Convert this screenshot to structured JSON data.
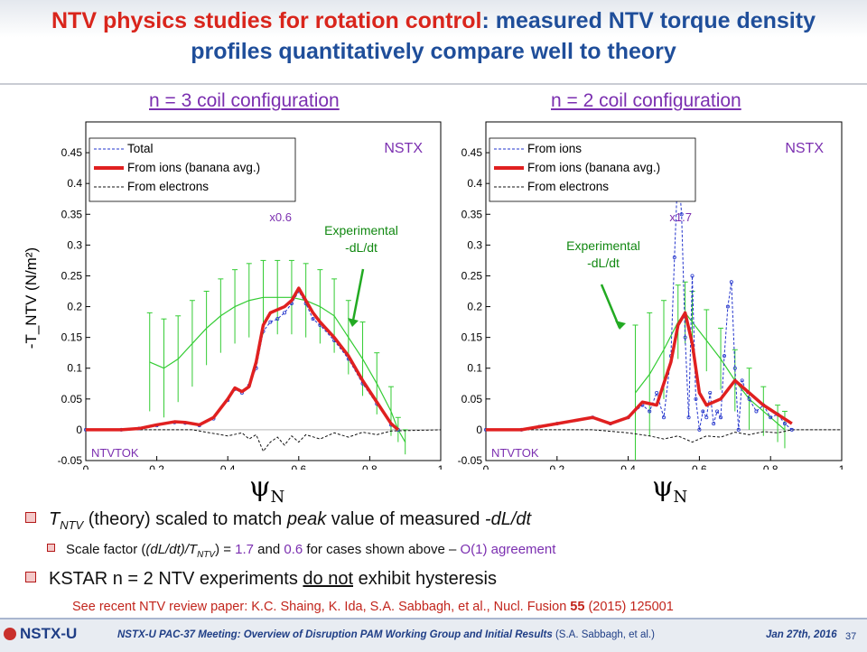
{
  "slide": {
    "title_red": "NTV physics studies for rotation control",
    "title_blue": ": measured NTV torque density profiles quantitatively compare well to theory",
    "left_config": "n = 3 coil configuration",
    "right_config": "n = 2 coil configuration",
    "bullet1_T": "T",
    "bullet1_sub": "NTV",
    "bullet1_rest": " (theory) scaled to match ",
    "bullet1_peak": "peak",
    "bullet1_rest2": " value of measured ",
    "bullet1_dldt": "-dL/dt",
    "bullet2_a": "Scale factor (",
    "bullet2_b": "(dL/dt)/T",
    "bullet2_sub": "NTV",
    "bullet2_c": ") = ",
    "bullet2_v1": "1.7",
    "bullet2_d": " and ",
    "bullet2_v2": "0.6",
    "bullet2_e": " for cases shown above – ",
    "bullet2_f": "O(1) agreement",
    "bullet3_a": "KSTAR n = 2 NTV experiments ",
    "bullet3_u": "do not",
    "bullet3_b": " exhibit hysteresis",
    "ref_a": "See recent NTV review paper: K.C. Shaing, K. Ida, S.A. Sabbagh, et al., Nucl. Fusion ",
    "ref_vol": "55",
    "ref_b": " (2015) 125001",
    "psi_label": "ψ",
    "psi_sub": "N"
  },
  "footer": {
    "logo": "NSTX-U",
    "meeting": "NSTX-U PAC-37 Meeting: Overview of Disruption PAM Working Group and Initial Results",
    "authors": "(S.A. Sabbagh, et al.)",
    "date": "Jan 27th, 2016",
    "page": "37"
  },
  "chart_data": [
    {
      "type": "line",
      "ylabel": "-T_NTV (N/m^2)",
      "xlim": [
        0,
        1
      ],
      "ylim": [
        -0.05,
        0.5
      ],
      "xticks": [
        "0",
        "0.2",
        "0.4",
        "0.6",
        "0.8",
        "1"
      ],
      "yticks": [
        "-0.05",
        "0",
        "0.05",
        "0.1",
        "0.15",
        "0.2",
        "0.25",
        "0.3",
        "0.35",
        "0.4",
        "0.45"
      ],
      "legend": [
        "Total",
        "From ions (banana avg.)",
        "From electrons"
      ],
      "scale_label": "x0.6",
      "machine_label": "NSTX",
      "code_label": "NTVTOK",
      "annotation": "Experimental\n-dL/dt",
      "colors": {
        "total": "#2233cc",
        "ions": "#e02020",
        "electrons": "#111111",
        "experimental": "#33cc33"
      },
      "experimental": {
        "x": [
          0.18,
          0.22,
          0.26,
          0.3,
          0.34,
          0.38,
          0.42,
          0.46,
          0.5,
          0.54,
          0.58,
          0.62,
          0.66,
          0.7,
          0.74,
          0.78,
          0.82,
          0.86,
          0.88,
          0.9
        ],
        "y": [
          0.11,
          0.1,
          0.115,
          0.14,
          0.165,
          0.185,
          0.2,
          0.21,
          0.215,
          0.215,
          0.215,
          0.21,
          0.2,
          0.185,
          0.15,
          0.115,
          0.075,
          0.03,
          0.0,
          -0.02
        ],
        "err": [
          0.08,
          0.08,
          0.07,
          0.07,
          0.06,
          0.06,
          0.06,
          0.06,
          0.06,
          0.06,
          0.06,
          0.06,
          0.06,
          0.06,
          0.06,
          0.06,
          0.05,
          0.04,
          0.02,
          0.02
        ]
      },
      "ions": {
        "x": [
          0,
          0.1,
          0.15,
          0.2,
          0.25,
          0.28,
          0.32,
          0.36,
          0.4,
          0.42,
          0.44,
          0.46,
          0.48,
          0.5,
          0.52,
          0.54,
          0.56,
          0.58,
          0.6,
          0.62,
          0.64,
          0.66,
          0.7,
          0.74,
          0.78,
          0.82,
          0.86,
          0.88
        ],
        "y": [
          0,
          0,
          0.002,
          0.008,
          0.013,
          0.012,
          0.008,
          0.02,
          0.05,
          0.068,
          0.062,
          0.07,
          0.11,
          0.17,
          0.19,
          0.195,
          0.2,
          0.21,
          0.23,
          0.21,
          0.19,
          0.175,
          0.15,
          0.12,
          0.08,
          0.045,
          0.01,
          0.0
        ]
      },
      "total": {
        "x": [
          0,
          0.1,
          0.15,
          0.2,
          0.25,
          0.28,
          0.32,
          0.36,
          0.4,
          0.42,
          0.44,
          0.46,
          0.48,
          0.5,
          0.52,
          0.54,
          0.56,
          0.58,
          0.6,
          0.62,
          0.64,
          0.66,
          0.7,
          0.74,
          0.78,
          0.82,
          0.86,
          0.88
        ],
        "y": [
          0,
          0,
          0.002,
          0.007,
          0.012,
          0.011,
          0.007,
          0.018,
          0.048,
          0.066,
          0.06,
          0.072,
          0.1,
          0.16,
          0.175,
          0.18,
          0.19,
          0.205,
          0.225,
          0.205,
          0.18,
          0.17,
          0.145,
          0.115,
          0.075,
          0.042,
          0.008,
          0.0
        ]
      },
      "electrons": {
        "x": [
          0,
          0.3,
          0.4,
          0.44,
          0.46,
          0.48,
          0.5,
          0.52,
          0.54,
          0.56,
          0.58,
          0.6,
          0.62,
          0.66,
          0.7,
          0.74,
          0.78,
          0.82,
          0.86,
          1.0
        ],
        "y": [
          0,
          0,
          -0.01,
          -0.005,
          -0.015,
          -0.008,
          -0.035,
          -0.02,
          -0.012,
          -0.025,
          -0.01,
          -0.02,
          -0.008,
          -0.015,
          -0.005,
          -0.012,
          -0.004,
          -0.008,
          -0.002,
          0
        ]
      }
    },
    {
      "type": "line",
      "xlim": [
        0,
        1
      ],
      "ylim": [
        -0.05,
        0.5
      ],
      "xticks": [
        "0",
        "0.2",
        "0.4",
        "0.6",
        "0.8",
        "1"
      ],
      "yticks": [
        "-0.05",
        "0",
        "0.05",
        "0.1",
        "0.15",
        "0.2",
        "0.25",
        "0.3",
        "0.35",
        "0.4",
        "0.45"
      ],
      "legend": [
        "From ions",
        "From ions (banana avg.)",
        "From electrons"
      ],
      "scale_label": "x1.7",
      "machine_label": "NSTX",
      "code_label": "NTVTOK",
      "annotation": "Experimental\n-dL/dt",
      "colors": {
        "total": "#2233cc",
        "ions": "#e02020",
        "electrons": "#111111",
        "experimental": "#33cc33"
      },
      "experimental": {
        "x": [
          0.42,
          0.46,
          0.5,
          0.54,
          0.56,
          0.58,
          0.62,
          0.66,
          0.7,
          0.74,
          0.78,
          0.82,
          0.84
        ],
        "y": [
          0.06,
          0.09,
          0.13,
          0.175,
          0.19,
          0.175,
          0.145,
          0.115,
          0.08,
          0.05,
          0.03,
          0.01,
          0.0
        ],
        "err": [
          0.11,
          0.1,
          0.08,
          0.06,
          0.05,
          0.05,
          0.05,
          0.05,
          0.05,
          0.05,
          0.04,
          0.03,
          0.03
        ]
      },
      "ions": {
        "x": [
          0,
          0.1,
          0.15,
          0.2,
          0.3,
          0.35,
          0.4,
          0.44,
          0.48,
          0.52,
          0.54,
          0.56,
          0.58,
          0.6,
          0.62,
          0.66,
          0.7,
          0.74,
          0.78,
          0.82,
          0.86
        ],
        "y": [
          0,
          0,
          0.005,
          0.01,
          0.02,
          0.01,
          0.02,
          0.045,
          0.04,
          0.11,
          0.17,
          0.19,
          0.14,
          0.06,
          0.04,
          0.05,
          0.08,
          0.06,
          0.04,
          0.025,
          0.01
        ]
      },
      "total": {
        "x": [
          0,
          0.1,
          0.15,
          0.2,
          0.3,
          0.35,
          0.4,
          0.44,
          0.46,
          0.48,
          0.5,
          0.52,
          0.53,
          0.54,
          0.55,
          0.56,
          0.57,
          0.58,
          0.59,
          0.6,
          0.61,
          0.62,
          0.63,
          0.64,
          0.65,
          0.66,
          0.67,
          0.68,
          0.69,
          0.7,
          0.71,
          0.72,
          0.74,
          0.76,
          0.78,
          0.8,
          0.82,
          0.84,
          0.86
        ],
        "y": [
          0,
          0,
          0.005,
          0.01,
          0.02,
          0.01,
          0.02,
          0.04,
          0.03,
          0.06,
          0.02,
          0.12,
          0.28,
          0.43,
          0.35,
          0.15,
          0.02,
          0.25,
          0.05,
          0.0,
          0.03,
          0.02,
          0.06,
          0.01,
          0.03,
          0.02,
          0.12,
          0.2,
          0.24,
          0.1,
          0.0,
          0.08,
          0.05,
          0.03,
          0.04,
          0.02,
          0.025,
          0.01,
          0.0
        ]
      },
      "electrons": {
        "x": [
          0,
          0.3,
          0.4,
          0.46,
          0.5,
          0.54,
          0.58,
          0.62,
          0.66,
          0.7,
          0.74,
          0.78,
          0.82,
          0.86,
          1.0
        ],
        "y": [
          0,
          0,
          -0.005,
          -0.01,
          -0.015,
          -0.01,
          -0.02,
          -0.01,
          -0.012,
          -0.004,
          -0.008,
          -0.003,
          -0.005,
          0,
          0
        ]
      }
    }
  ]
}
